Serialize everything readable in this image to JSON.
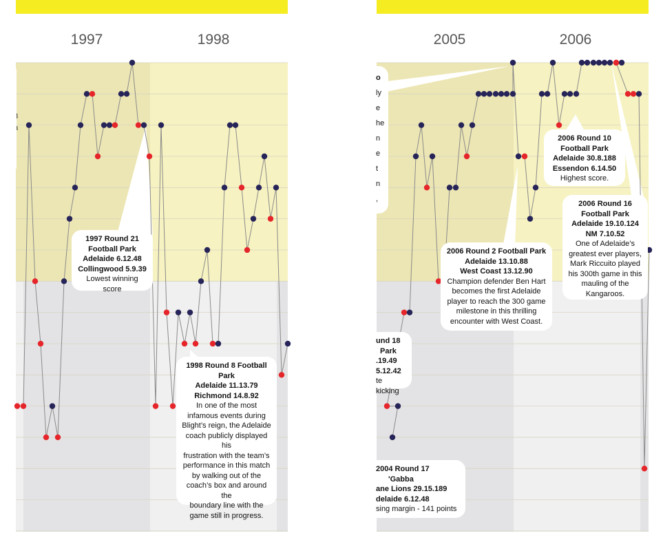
{
  "colors": {
    "banner": "#f5ec22",
    "band_upper_light": "#f6f2c1",
    "band_upper_dark": "#ece6b4",
    "band_lower_light": "#f0f0f0",
    "band_lower_dark": "#e3e3e5",
    "win": "#262458",
    "loss": "#e5252a",
    "line": "#8a8a8a",
    "grid": "#d7d4c2",
    "year_text": "#555555"
  },
  "chart_data": [
    {
      "type": "line",
      "panel": "left",
      "years": [
        "1997",
        "1998"
      ],
      "y_scale": "ladder position (1 = top, 16 = bottom)",
      "ylim": [
        1,
        16
      ],
      "points": [
        {
          "x": 0,
          "y": 12,
          "r": "L"
        },
        {
          "x": 1,
          "y": 12,
          "r": "L"
        },
        {
          "x": 2,
          "y": 3,
          "r": "W"
        },
        {
          "x": 3,
          "y": 8,
          "r": "L"
        },
        {
          "x": 4,
          "y": 10,
          "r": "L"
        },
        {
          "x": 5,
          "y": 13,
          "r": "L"
        },
        {
          "x": 6,
          "y": 12,
          "r": "W"
        },
        {
          "x": 7,
          "y": 13,
          "r": "L"
        },
        {
          "x": 8,
          "y": 8,
          "r": "W"
        },
        {
          "x": 9,
          "y": 6,
          "r": "W"
        },
        {
          "x": 10,
          "y": 5,
          "r": "W"
        },
        {
          "x": 11,
          "y": 3,
          "r": "W"
        },
        {
          "x": 12,
          "y": 2,
          "r": "W"
        },
        {
          "x": 13,
          "y": 2,
          "r": "L"
        },
        {
          "x": 14,
          "y": 4,
          "r": "L"
        },
        {
          "x": 15,
          "y": 3,
          "r": "W"
        },
        {
          "x": 16,
          "y": 3,
          "r": "W"
        },
        {
          "x": 17,
          "y": 3,
          "r": "L"
        },
        {
          "x": 18,
          "y": 2,
          "r": "W"
        },
        {
          "x": 19,
          "y": 2,
          "r": "W"
        },
        {
          "x": 20,
          "y": 1,
          "r": "W"
        },
        {
          "x": 21,
          "y": 3,
          "r": "L"
        },
        {
          "x": 22,
          "y": 3,
          "r": "W"
        },
        {
          "x": 23,
          "y": 4,
          "r": "L"
        },
        {
          "x": 24,
          "y": 12,
          "r": "L"
        },
        {
          "x": 25,
          "y": 3,
          "r": "W"
        },
        {
          "x": 26,
          "y": 9,
          "r": "L"
        },
        {
          "x": 27,
          "y": 12,
          "r": "L"
        },
        {
          "x": 28,
          "y": 9,
          "r": "W"
        },
        {
          "x": 29,
          "y": 10,
          "r": "L"
        },
        {
          "x": 30,
          "y": 9,
          "r": "W"
        },
        {
          "x": 31,
          "y": 10,
          "r": "L"
        },
        {
          "x": 32,
          "y": 8,
          "r": "W"
        },
        {
          "x": 33,
          "y": 7,
          "r": "W"
        },
        {
          "x": 34,
          "y": 10,
          "r": "L"
        },
        {
          "x": 35,
          "y": 10,
          "r": "W"
        },
        {
          "x": 36,
          "y": 5,
          "r": "W"
        },
        {
          "x": 37,
          "y": 3,
          "r": "W"
        },
        {
          "x": 38,
          "y": 3,
          "r": "W"
        },
        {
          "x": 39,
          "y": 5,
          "r": "L"
        },
        {
          "x": 40,
          "y": 7,
          "r": "L"
        },
        {
          "x": 41,
          "y": 6,
          "r": "W"
        },
        {
          "x": 42,
          "y": 5,
          "r": "W"
        },
        {
          "x": 43,
          "y": 4,
          "r": "W"
        },
        {
          "x": 44,
          "y": 6,
          "r": "L"
        },
        {
          "x": 45,
          "y": 5,
          "r": "W"
        },
        {
          "x": 46,
          "y": 11,
          "r": "L"
        },
        {
          "x": 47,
          "y": 10,
          "r": "W"
        }
      ],
      "annotations": [
        {
          "lines": [
            {
              "t": "1997 Round 21",
              "b": true
            },
            {
              "t": "Football Park",
              "b": true
            },
            {
              "t": "Adelaide 6.12.48",
              "b": true
            },
            {
              "t": "Collingwood 5.9.39",
              "b": true
            },
            {
              "t": "Lowest winning score",
              "b": false
            }
          ]
        },
        {
          "lines": [
            {
              "t": "1998 Round 8 Football",
              "b": true
            },
            {
              "t": "Park",
              "b": true
            },
            {
              "t": "Adelaide 11.13.79",
              "b": true
            },
            {
              "t": "Richmond 14.8.92",
              "b": true
            },
            {
              "t": "In one of the most",
              "b": false
            },
            {
              "t": "infamous events during",
              "b": false
            },
            {
              "t": "Blight’s reign, the Adelaide",
              "b": false
            },
            {
              "t": "coach publicly displayed his",
              "b": false
            },
            {
              "t": "frustration with the team’s",
              "b": false
            },
            {
              "t": "performance in this match",
              "b": false
            },
            {
              "t": "by walking out of the",
              "b": false
            },
            {
              "t": "coach’s box and around the",
              "b": false
            },
            {
              "t": "boundary line with the",
              "b": false
            },
            {
              "t": "game still in progress.",
              "b": false
            }
          ]
        }
      ],
      "partial_text": [
        "3",
        "n",
        "f"
      ]
    },
    {
      "type": "line",
      "panel": "right",
      "years": [
        "2005",
        "2006"
      ],
      "y_scale": "ladder position (1 = top, 16 = bottom)",
      "ylim": [
        1,
        16
      ],
      "points": [
        {
          "x": 0,
          "y": 13,
          "r": "W"
        },
        {
          "x": 1,
          "y": 12,
          "r": "W"
        },
        {
          "x": 2,
          "y": 12,
          "r": "L"
        },
        {
          "x": 3,
          "y": 9,
          "r": "L"
        },
        {
          "x": 4,
          "y": 9,
          "r": "W"
        },
        {
          "x": 5,
          "y": 4,
          "r": "W"
        },
        {
          "x": 6,
          "y": 3,
          "r": "W"
        },
        {
          "x": 7,
          "y": 5,
          "r": "L"
        },
        {
          "x": 8,
          "y": 4,
          "r": "W"
        },
        {
          "x": 9,
          "y": 8,
          "r": "L"
        },
        {
          "x": 10,
          "y": 8,
          "r": "L"
        },
        {
          "x": 11,
          "y": 5,
          "r": "W"
        },
        {
          "x": 12,
          "y": 5,
          "r": "W"
        },
        {
          "x": 13,
          "y": 3,
          "r": "W"
        },
        {
          "x": 14,
          "y": 4,
          "r": "L"
        },
        {
          "x": 15,
          "y": 3,
          "r": "W"
        },
        {
          "x": 16,
          "y": 2,
          "r": "W"
        },
        {
          "x": 17,
          "y": 2,
          "r": "W"
        },
        {
          "x": 18,
          "y": 2,
          "r": "W"
        },
        {
          "x": 19,
          "y": 2,
          "r": "W"
        },
        {
          "x": 20,
          "y": 2,
          "r": "W"
        },
        {
          "x": 21,
          "y": 2,
          "r": "W"
        },
        {
          "x": 22,
          "y": 2,
          "r": "W"
        },
        {
          "x": 23,
          "y": 1,
          "r": "W"
        },
        {
          "x": 24,
          "y": 4,
          "r": "W"
        },
        {
          "x": 25,
          "y": 4,
          "r": "L"
        },
        {
          "x": 26,
          "y": 6,
          "r": "W"
        },
        {
          "x": 27,
          "y": 5,
          "r": "W"
        },
        {
          "x": 28,
          "y": 2,
          "r": "W"
        },
        {
          "x": 29,
          "y": 2,
          "r": "W"
        },
        {
          "x": 30,
          "y": 1,
          "r": "W"
        },
        {
          "x": 31,
          "y": 3,
          "r": "L"
        },
        {
          "x": 32,
          "y": 2,
          "r": "W"
        },
        {
          "x": 33,
          "y": 2,
          "r": "W"
        },
        {
          "x": 34,
          "y": 2,
          "r": "W"
        },
        {
          "x": 35,
          "y": 1,
          "r": "W"
        },
        {
          "x": 36,
          "y": 1,
          "r": "W"
        },
        {
          "x": 37,
          "y": 1,
          "r": "W"
        },
        {
          "x": 38,
          "y": 1,
          "r": "W"
        },
        {
          "x": 39,
          "y": 1,
          "r": "W"
        },
        {
          "x": 40,
          "y": 1,
          "r": "W"
        },
        {
          "x": 41,
          "y": 1,
          "r": "L"
        },
        {
          "x": 42,
          "y": 1,
          "r": "W"
        },
        {
          "x": 43,
          "y": 1,
          "r": "L"
        },
        {
          "x": 44,
          "y": 2,
          "r": "L"
        },
        {
          "x": 45,
          "y": 2,
          "r": "L"
        },
        {
          "x": 46,
          "y": 2,
          "r": "W"
        },
        {
          "x": 47,
          "y": 14,
          "r": "L"
        },
        {
          "x": 48,
          "y": 7,
          "r": "W"
        }
      ],
      "annotations": [
        {
          "lines": [
            {
              "t": "2006 Round 10",
              "b": true
            },
            {
              "t": "Football Park",
              "b": true
            },
            {
              "t": "Adelaide 30.8.188",
              "b": true
            },
            {
              "t": "Essendon 6.14.50",
              "b": true
            },
            {
              "t": "Highest score.",
              "b": false
            }
          ]
        },
        {
          "lines": [
            {
              "t": "2006 Round 16",
              "b": true
            },
            {
              "t": "Football Park",
              "b": true
            },
            {
              "t": "Adelaide 19.10.124",
              "b": true
            },
            {
              "t": "NM 7.10.52",
              "b": true
            },
            {
              "t": "One of Adelaide’s",
              "b": false
            },
            {
              "t": "greatest ever players,",
              "b": false
            },
            {
              "t": "Mark Riccuito played",
              "b": false
            },
            {
              "t": "his 300th game in this",
              "b": false
            },
            {
              "t": "mauling of the",
              "b": false
            },
            {
              "t": "Kangaroos.",
              "b": false
            }
          ]
        },
        {
          "lines": [
            {
              "t": "2006 Round 2 Football Park",
              "b": true
            },
            {
              "t": "Adelaide 13.10.88",
              "b": true
            },
            {
              "t": "West Coast 13.12.90",
              "b": true
            },
            {
              "t": "Champion defender Ben Hart",
              "b": false
            },
            {
              "t": "becomes the first Adelaide",
              "b": false
            },
            {
              "t": "player to reach the 300 game",
              "b": false
            },
            {
              "t": "milestone in this thrilling",
              "b": false
            },
            {
              "t": "encounter with West Coast.",
              "b": false
            }
          ]
        },
        {
          "lines": [
            {
              "t": "2004 Round 17",
              "b": true
            },
            {
              "t": "'Gabba",
              "b": true
            },
            {
              "t": "ane Lions 29.15.189",
              "b": true
            },
            {
              "t": "delaide 6.12.48",
              "b": true
            },
            {
              "t": "sing margin - 141 points",
              "b": false
            }
          ]
        },
        {
          "lines": [
            {
              "t": "und 18",
              "b": true
            },
            {
              "t": "Park",
              "b": true
            },
            {
              "t": ".19.49",
              "b": true
            },
            {
              "t": "5.12.42",
              "b": true
            },
            {
              "t": "te kicking",
              "b": false
            }
          ]
        },
        {
          "lines": [
            {
              "t": "o",
              "b": true
            },
            {
              "t": "ly",
              "b": false
            },
            {
              "t": "e",
              "b": false
            },
            {
              "t": "he",
              "b": false
            },
            {
              "t": "n",
              "b": false
            },
            {
              "t": "e",
              "b": false
            },
            {
              "t": "t",
              "b": false
            },
            {
              "t": "n",
              "b": false
            },
            {
              "t": ",",
              "b": false
            }
          ]
        }
      ]
    }
  ]
}
